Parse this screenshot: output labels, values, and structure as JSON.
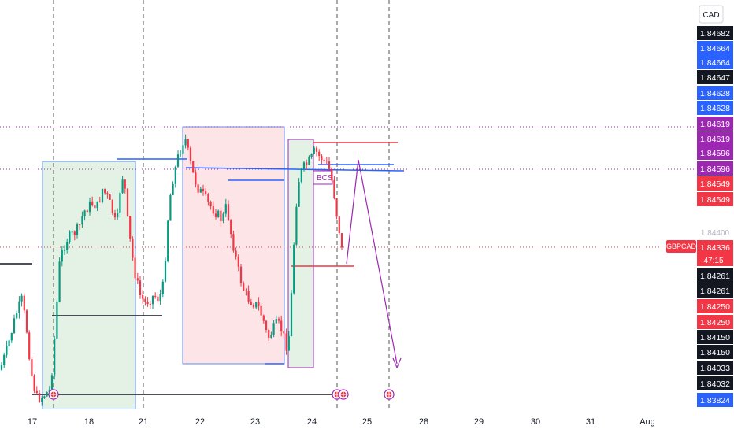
{
  "symbol": "GBPCAD",
  "currency_button": "CAD",
  "countdown": "47:15",
  "chart_data": {
    "type": "candlestick",
    "x_axis": {
      "ticks": [
        "17",
        "18",
        "21",
        "22",
        "23",
        "24",
        "25",
        "28",
        "29",
        "30",
        "31",
        "Aug"
      ]
    },
    "y_axis": {
      "range": [
        1.8378,
        1.8468
      ],
      "plain_tick": "1.84400",
      "labels": [
        {
          "value": "1.84682",
          "color": "#131722"
        },
        {
          "value": "1.84664",
          "color": "#2962ff"
        },
        {
          "value": "1.84664",
          "color": "#2962ff"
        },
        {
          "value": "1.84647",
          "color": "#131722"
        },
        {
          "value": "1.84628",
          "color": "#2962ff"
        },
        {
          "value": "1.84628",
          "color": "#2962ff"
        },
        {
          "value": "1.84619",
          "color": "#9c27b0"
        },
        {
          "value": "1.84619",
          "color": "#9c27b0"
        },
        {
          "value": "1.84596",
          "color": "#9c27b0"
        },
        {
          "value": "1.84596",
          "color": "#9c27b0"
        },
        {
          "value": "1.84549",
          "color": "#f23645"
        },
        {
          "value": "1.84549",
          "color": "#f23645"
        },
        {
          "value": "1.84336",
          "color": "#f23645"
        },
        {
          "value": "1.84261",
          "color": "#131722"
        },
        {
          "value": "1.84261",
          "color": "#131722"
        },
        {
          "value": "1.84250",
          "color": "#f23645"
        },
        {
          "value": "1.84250",
          "color": "#f23645"
        },
        {
          "value": "1.84150",
          "color": "#131722"
        },
        {
          "value": "1.84150",
          "color": "#131722"
        },
        {
          "value": "1.84033",
          "color": "#131722"
        },
        {
          "value": "1.84032",
          "color": "#131722"
        },
        {
          "value": "1.83824",
          "color": "#2962ff"
        }
      ]
    },
    "current_price": "1.84336",
    "annotations": [
      {
        "type": "label",
        "text": "BCS"
      },
      {
        "type": "zone",
        "kind": "demand",
        "color": "#c8e6c9"
      },
      {
        "type": "zone",
        "kind": "supply",
        "color": "#f8c8cc"
      },
      {
        "type": "zone",
        "kind": "demand",
        "color": "#c8e6c9"
      },
      {
        "type": "projection",
        "direction": "up-then-down",
        "color": "#9c27b0"
      }
    ],
    "candle_colors": {
      "up": "#089981",
      "down": "#f23645"
    },
    "grid": false
  }
}
